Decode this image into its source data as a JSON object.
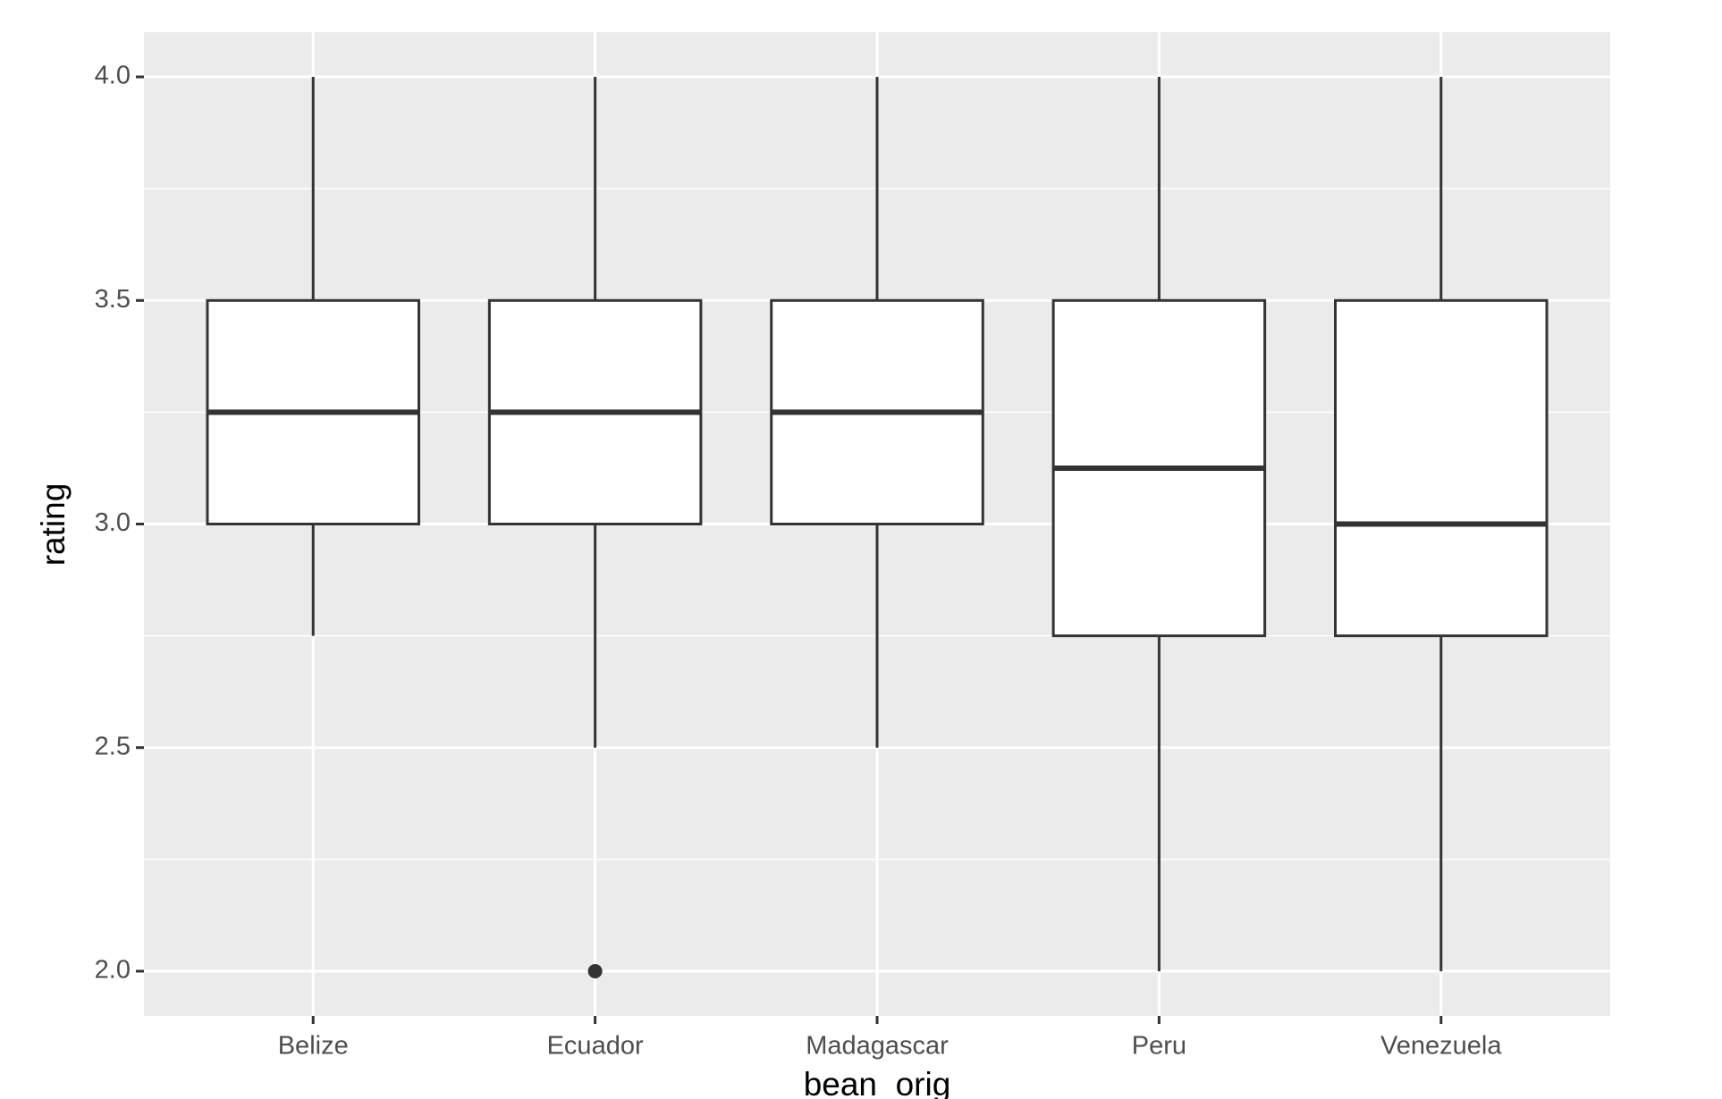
{
  "chart_data": {
    "type": "boxplot",
    "x_label": "bean_orig",
    "y_label": "rating",
    "categories": [
      "Belize",
      "Ecuador",
      "Madagascar",
      "Peru",
      "Venezuela"
    ],
    "boxes": [
      {
        "low": 2.75,
        "q1": 3.0,
        "median": 3.25,
        "q3": 3.5,
        "high": 4.0,
        "outliers": []
      },
      {
        "low": 2.5,
        "q1": 3.0,
        "median": 3.25,
        "q3": 3.5,
        "high": 4.0,
        "outliers": [
          2.0
        ]
      },
      {
        "low": 2.5,
        "q1": 3.0,
        "median": 3.25,
        "q3": 3.5,
        "high": 4.0,
        "outliers": []
      },
      {
        "low": 2.0,
        "q1": 2.75,
        "median": 3.125,
        "q3": 3.5,
        "high": 4.0,
        "outliers": []
      },
      {
        "low": 2.0,
        "q1": 2.75,
        "median": 3.0,
        "q3": 3.5,
        "high": 4.0,
        "outliers": []
      }
    ],
    "box_color": "#ffffff",
    "line_color": "#333333",
    "ylim": [
      1.9,
      4.1
    ],
    "yticks": [
      {
        "value": 2,
        "label": "2.0"
      },
      2.5,
      {
        "value": 3,
        "label": "3.0"
      },
      3.5,
      {
        "value": 4,
        "label": "4.0"
      }
    ],
    "minor_yticks": [
      2.25,
      2.75,
      3.25,
      3.75
    ],
    "grid": true
  }
}
